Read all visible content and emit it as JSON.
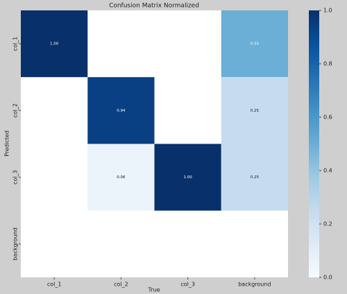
{
  "chart_data": {
    "type": "heatmap",
    "title": "Confusion Matrix Normalized",
    "xlabel": "True",
    "ylabel": "Predicted",
    "x_categories": [
      "col_1",
      "col_2",
      "col_3",
      "background"
    ],
    "y_categories": [
      "col_1",
      "col_2",
      "col_3",
      "background"
    ],
    "values": [
      [
        1.0,
        null,
        null,
        0.5
      ],
      [
        null,
        0.94,
        null,
        0.25
      ],
      [
        null,
        0.06,
        1.0,
        0.25
      ],
      [
        null,
        null,
        null,
        null
      ]
    ],
    "value_labels": [
      [
        "1.00",
        null,
        null,
        "0.50"
      ],
      [
        null,
        "0.94",
        null,
        "0.25"
      ],
      [
        null,
        "0.06",
        "1.00",
        "0.25"
      ],
      [
        null,
        null,
        null,
        null
      ]
    ],
    "colormap": [
      "#f7fbff",
      "#deebf7",
      "#c6dbef",
      "#9ecae1",
      "#6baed6",
      "#4292c6",
      "#2171b5",
      "#08519c",
      "#08306b"
    ],
    "clim": [
      0,
      1
    ],
    "cticks": [
      {
        "value": 0,
        "label": "0.0"
      },
      0.2,
      0.4,
      0.6,
      0.8,
      {
        "value": 1,
        "label": "1.0"
      }
    ]
  }
}
